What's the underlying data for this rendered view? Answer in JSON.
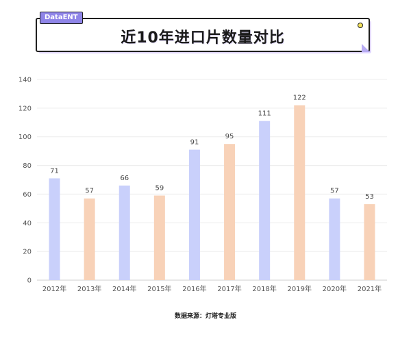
{
  "header": {
    "brand": "DataENT"
  },
  "chart_data": {
    "type": "bar",
    "title": "近10年进口片数量对比",
    "categories": [
      "2012年",
      "2013年",
      "2014年",
      "2015年",
      "2016年",
      "2017年",
      "2018年",
      "2019年",
      "2020年",
      "2021年"
    ],
    "values": [
      71,
      57,
      66,
      59,
      91,
      95,
      111,
      122,
      57,
      53
    ],
    "bar_colors": [
      "#c9d0fb",
      "#f8d2b8",
      "#c9d0fb",
      "#f8d2b8",
      "#c9d0fb",
      "#f8d2b8",
      "#c9d0fb",
      "#f8d2b8",
      "#c9d0fb",
      "#f8d2b8"
    ],
    "ylim": [
      0,
      140
    ],
    "yticks": [
      0,
      20,
      40,
      60,
      80,
      100,
      120,
      140
    ],
    "grid": true,
    "data_labels": true
  },
  "footer": {
    "source": "数据来源：灯塔专业版"
  }
}
